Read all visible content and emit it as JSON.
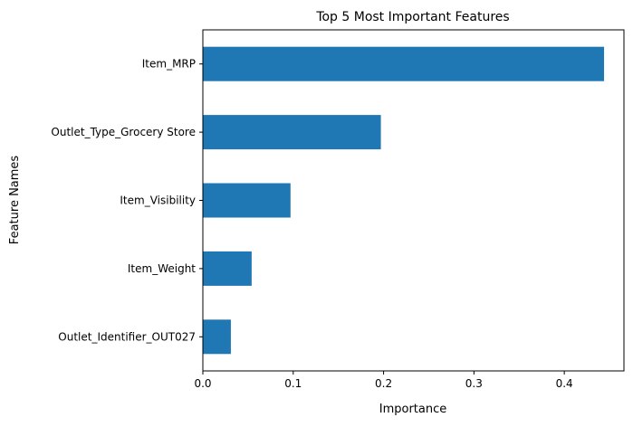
{
  "chart_data": {
    "type": "bar",
    "orientation": "horizontal",
    "title": "Top 5 Most Important Features",
    "xlabel": "Importance",
    "ylabel": "Feature Names",
    "categories": [
      "Item_MRP",
      "Outlet_Type_Grocery Store",
      "Item_Visibility",
      "Item_Weight",
      "Outlet_Identifier_OUT027"
    ],
    "values": [
      0.444,
      0.197,
      0.097,
      0.054,
      0.031
    ],
    "xlim": [
      0,
      0.466
    ],
    "xticks": [
      0.0,
      0.1,
      0.2,
      0.3,
      0.4
    ],
    "xtick_labels": [
      "0.0",
      "0.1",
      "0.2",
      "0.3",
      "0.4"
    ],
    "grid": false,
    "bar_color": "#1f77b4"
  }
}
